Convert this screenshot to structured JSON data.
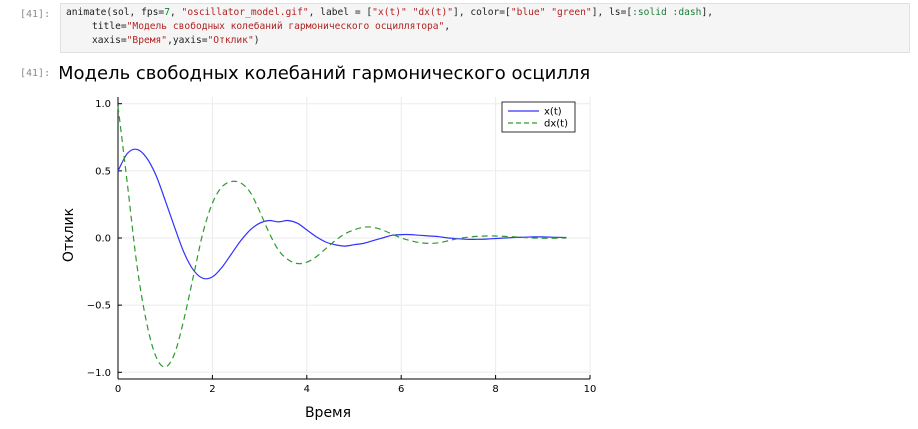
{
  "input_cell": {
    "prompt": "[41]:",
    "code_lines": [
      [
        {
          "t": "animate(sol, fps=",
          "c": "plain"
        },
        {
          "t": "7",
          "c": "num"
        },
        {
          "t": ", ",
          "c": "plain"
        },
        {
          "t": "\"oscillator_model.gif\"",
          "c": "str"
        },
        {
          "t": ", label = [",
          "c": "plain"
        },
        {
          "t": "\"x(t)\"",
          "c": "str"
        },
        {
          "t": " ",
          "c": "plain"
        },
        {
          "t": "\"dx(t)\"",
          "c": "str"
        },
        {
          "t": "], color=[",
          "c": "plain"
        },
        {
          "t": "\"blue\"",
          "c": "str"
        },
        {
          "t": " ",
          "c": "plain"
        },
        {
          "t": "\"green\"",
          "c": "str"
        },
        {
          "t": "], ls=[",
          "c": "plain"
        },
        {
          "t": ":solid :dash",
          "c": "sym"
        },
        {
          "t": "],",
          "c": "plain"
        }
      ],
      [
        {
          "t": "title=",
          "c": "plain"
        },
        {
          "t": "\"Модель свободных колебаний гармонического осциллятора\"",
          "c": "str"
        },
        {
          "t": ",",
          "c": "plain"
        }
      ],
      [
        {
          "t": "xaxis=",
          "c": "plain"
        },
        {
          "t": "\"Время\"",
          "c": "str"
        },
        {
          "t": ",yaxis=",
          "c": "plain"
        },
        {
          "t": "\"Отклик\"",
          "c": "str"
        },
        {
          "t": ")",
          "c": "plain"
        }
      ]
    ]
  },
  "output_cell": {
    "prompt": "[41]:"
  },
  "colors": {
    "x_series": "#3232ff",
    "dx_series": "#2e9a2e"
  },
  "chart_data": {
    "type": "line",
    "title": "Модель свободных колебаний гармонического осцилля",
    "xlabel": "Время",
    "ylabel": "Отклик",
    "xlim": [
      0,
      10
    ],
    "ylim": [
      -1.05,
      1.05
    ],
    "xticks": [
      0,
      2,
      4,
      6,
      8,
      10
    ],
    "yticks": [
      -1.0,
      -0.5,
      0.0,
      0.5,
      1.0
    ],
    "ytick_labels": [
      "−1.0",
      "−0.5",
      "0.0",
      "0.5",
      "1.0"
    ],
    "grid": true,
    "legend_position": "top-right",
    "series": [
      {
        "name": "x(t)",
        "style": "solid",
        "x": [
          0,
          0.2,
          0.4,
          0.6,
          0.8,
          1.0,
          1.2,
          1.4,
          1.6,
          1.8,
          2.0,
          2.2,
          2.4,
          2.6,
          2.8,
          3.0,
          3.2,
          3.4,
          3.6,
          3.8,
          4.0,
          4.2,
          4.4,
          4.6,
          4.8,
          5.0,
          5.2,
          5.4,
          5.6,
          5.8,
          6.0,
          6.2,
          6.4,
          6.6,
          6.8,
          7.0,
          7.2,
          7.4,
          7.6,
          7.8,
          8.0,
          8.2,
          8.4,
          8.6,
          8.8,
          9.0,
          9.2,
          9.5
        ],
        "y": [
          0.5,
          0.63,
          0.66,
          0.6,
          0.47,
          0.28,
          0.08,
          -0.11,
          -0.24,
          -0.3,
          -0.29,
          -0.22,
          -0.12,
          -0.02,
          0.06,
          0.11,
          0.13,
          0.12,
          0.13,
          0.11,
          0.06,
          0.01,
          -0.03,
          -0.05,
          -0.06,
          -0.05,
          -0.04,
          -0.02,
          0.0,
          0.02,
          0.025,
          0.025,
          0.02,
          0.015,
          0.01,
          0.0,
          -0.005,
          -0.01,
          -0.01,
          -0.008,
          -0.004,
          0.0,
          0.004,
          0.006,
          0.008,
          0.008,
          0.006,
          0.004
        ]
      },
      {
        "name": "dx(t)",
        "style": "dash",
        "x": [
          0,
          0.2,
          0.4,
          0.6,
          0.8,
          1.0,
          1.2,
          1.4,
          1.6,
          1.8,
          2.0,
          2.2,
          2.4,
          2.6,
          2.8,
          3.0,
          3.2,
          3.4,
          3.6,
          3.8,
          4.0,
          4.2,
          4.4,
          4.6,
          4.8,
          5.0,
          5.2,
          5.4,
          5.6,
          5.8,
          6.0,
          6.2,
          6.4,
          6.6,
          6.8,
          7.0,
          7.2,
          7.4,
          7.6,
          7.8,
          8.0,
          8.2,
          8.4,
          8.6,
          8.8,
          9.0,
          9.2,
          9.5
        ],
        "y": [
          0.98,
          0.4,
          -0.2,
          -0.62,
          -0.88,
          -0.96,
          -0.86,
          -0.6,
          -0.28,
          0.04,
          0.26,
          0.38,
          0.42,
          0.41,
          0.34,
          0.2,
          0.04,
          -0.09,
          -0.16,
          -0.19,
          -0.18,
          -0.14,
          -0.08,
          -0.02,
          0.03,
          0.06,
          0.08,
          0.08,
          0.06,
          0.03,
          0.0,
          -0.02,
          -0.035,
          -0.04,
          -0.035,
          -0.02,
          -0.005,
          0.005,
          0.012,
          0.015,
          0.015,
          0.012,
          0.008,
          0.004,
          0.0,
          -0.002,
          -0.002,
          0.0
        ]
      }
    ]
  }
}
